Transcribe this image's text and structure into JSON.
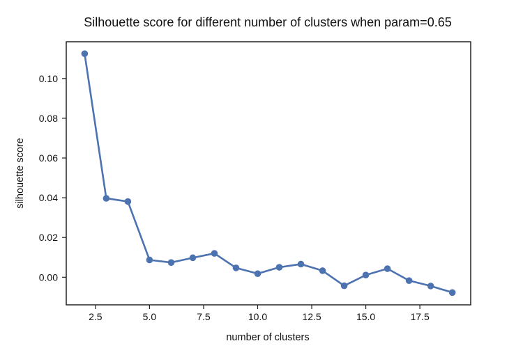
{
  "chart_data": {
    "type": "line",
    "title": "Silhouette score for different number of clusters when param=0.65",
    "xlabel": "number of clusters",
    "ylabel": "silhouette score",
    "x": [
      2,
      3,
      4,
      5,
      6,
      7,
      8,
      9,
      10,
      11,
      12,
      13,
      14,
      15,
      16,
      17,
      18,
      19
    ],
    "series": [
      {
        "values": [
          0.1125,
          0.0397,
          0.0381,
          0.0087,
          0.0074,
          0.0098,
          0.012,
          0.0047,
          0.0018,
          0.005,
          0.0066,
          0.0033,
          -0.0043,
          0.0011,
          0.0043,
          -0.0017,
          -0.0044,
          -0.0077
        ],
        "color": "#4c72b0"
      }
    ],
    "xlim": [
      1.15,
      19.85
    ],
    "ylim": [
      -0.0139,
      0.1185
    ],
    "xticks": [
      2.5,
      5.0,
      7.5,
      10.0,
      12.5,
      15.0,
      17.5
    ],
    "xtick_labels": [
      "2.5",
      "5.0",
      "7.5",
      "10.0",
      "12.5",
      "15.0",
      "17.5"
    ],
    "yticks": [
      0.0,
      0.02,
      0.04,
      0.06,
      0.08,
      0.1
    ],
    "ytick_labels": [
      "0.00",
      "0.02",
      "0.04",
      "0.06",
      "0.08",
      "0.10"
    ],
    "grid": false,
    "legend": "none"
  }
}
